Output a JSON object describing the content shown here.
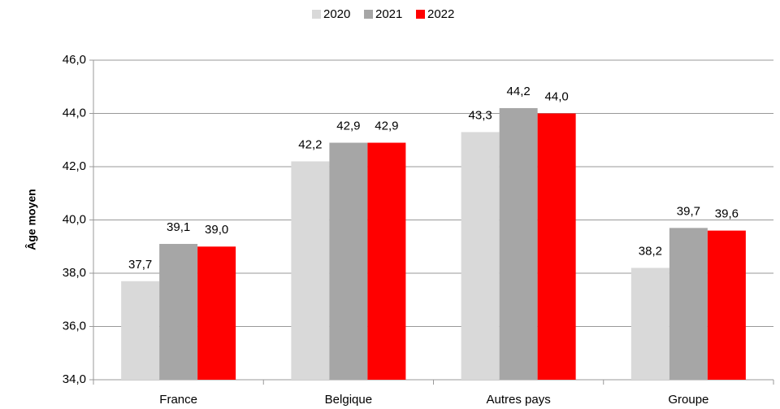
{
  "chart_data": {
    "type": "bar",
    "y_label": "Âge moyen",
    "categories": [
      "France",
      "Belgique",
      "Autres pays",
      "Groupe"
    ],
    "series": [
      {
        "name": "2020",
        "color": "#d9d9d9",
        "values": [
          37.7,
          42.2,
          43.3,
          38.2
        ],
        "value_labels": [
          "37,7",
          "42,2",
          "43,3",
          "38,2"
        ]
      },
      {
        "name": "2021",
        "color": "#a6a6a6",
        "values": [
          39.1,
          42.9,
          44.2,
          39.7
        ],
        "value_labels": [
          "39,1",
          "42,9",
          "44,2",
          "39,7"
        ]
      },
      {
        "name": "2022",
        "color": "#ff0000",
        "values": [
          39.0,
          42.9,
          44.0,
          39.6
        ],
        "value_labels": [
          "39,0",
          "42,9",
          "44,0",
          "39,6"
        ]
      }
    ],
    "ylim": [
      34,
      46
    ],
    "yticks": [
      {
        "value": 34,
        "label": "34,0"
      },
      {
        "value": 36,
        "label": "36,0"
      },
      {
        "value": 38,
        "label": "38,0"
      },
      {
        "value": 40,
        "label": "40,0"
      },
      {
        "value": 42,
        "label": "42,0"
      },
      {
        "value": 44,
        "label": "44,0"
      },
      {
        "value": 46,
        "label": "46,0"
      }
    ],
    "grid": true,
    "legend": "top"
  }
}
